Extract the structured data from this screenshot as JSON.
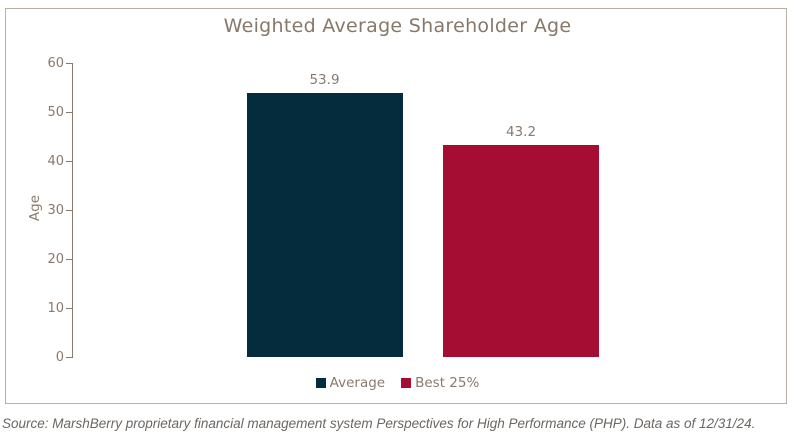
{
  "chart": {
    "title": "Weighted Average Shareholder Age",
    "source_note": "Source: MarshBerry proprietary financial management system Perspectives for High Performance (PHP). Data as of 12/31/24."
  },
  "colors": {
    "navy": "#052c3d",
    "crimson": "#a60d33",
    "axis_text": "#8a7a6c",
    "title_text": "#87786a",
    "frame_border": "#b7aea4",
    "source_text": "#6b6661",
    "background": "#ffffff"
  },
  "chart_data": {
    "type": "bar",
    "title": "Weighted Average Shareholder Age",
    "categories": [
      "Average",
      "Best 25%"
    ],
    "values": [
      53.9,
      43.2
    ],
    "data_labels": [
      "53.9",
      "43.2"
    ],
    "series_colors": [
      "#052c3d",
      "#a60d33"
    ],
    "xlabel": "",
    "ylabel": "Age",
    "ylim": [
      0,
      60
    ],
    "yticks": [
      0,
      10,
      20,
      30,
      40,
      50,
      60
    ],
    "grid": false,
    "legend": [
      "Average",
      "Best 25%"
    ],
    "legend_position": "bottom"
  }
}
